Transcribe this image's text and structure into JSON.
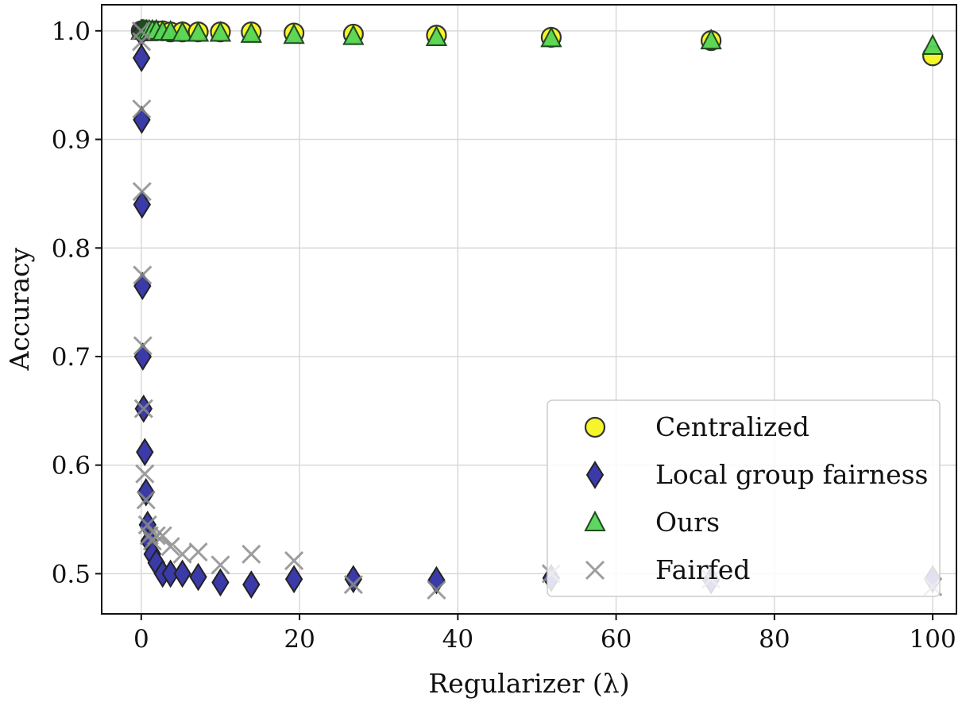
{
  "chart_data": {
    "type": "scatter",
    "title": "",
    "xlabel": "Regularizer (λ)",
    "ylabel": "Accuracy",
    "xlim": [
      -5,
      103
    ],
    "ylim": [
      0.463,
      1.024
    ],
    "xticks": [
      0,
      20,
      40,
      60,
      80,
      100
    ],
    "yticks": [
      0.5,
      0.6,
      0.7,
      0.8,
      0.9,
      1.0
    ],
    "grid": true,
    "legend_position": "bottom-right",
    "series": [
      {
        "name": "Centralized",
        "marker": "circle",
        "color": "#f5f52a",
        "x": [
          0,
          0.1,
          0.2,
          0.3,
          0.5,
          0.7,
          1.0,
          1.4,
          1.9,
          2.7,
          3.7,
          5.2,
          7.2,
          10,
          13.9,
          19.3,
          26.8,
          37.3,
          51.8,
          72,
          100
        ],
        "y": [
          1.0,
          1.0,
          1.0,
          1.0,
          1.0,
          1.0,
          1.0,
          1.0,
          1.0,
          1.0,
          0.999,
          0.999,
          0.999,
          0.999,
          0.999,
          0.998,
          0.997,
          0.996,
          0.994,
          0.991,
          0.977
        ]
      },
      {
        "name": "Local group fairness",
        "marker": "diamond",
        "color": "#3a3aa8",
        "x": [
          0,
          0.03,
          0.06,
          0.1,
          0.15,
          0.2,
          0.3,
          0.45,
          0.6,
          0.8,
          1.0,
          1.4,
          1.9,
          2.7,
          3.7,
          5.2,
          7.2,
          10,
          13.9,
          19.3,
          26.8,
          37.3,
          51.8,
          72,
          100
        ],
        "y": [
          0.998,
          0.975,
          0.918,
          0.84,
          0.765,
          0.7,
          0.652,
          0.612,
          0.575,
          0.545,
          0.53,
          0.518,
          0.51,
          0.5,
          0.5,
          0.5,
          0.497,
          0.492,
          0.49,
          0.495,
          0.495,
          0.494,
          0.496,
          0.494,
          0.495
        ]
      },
      {
        "name": "Ours",
        "marker": "triangle",
        "color": "#56d456",
        "x": [
          0,
          0.1,
          0.2,
          0.3,
          0.5,
          0.7,
          1.0,
          1.4,
          1.9,
          2.7,
          3.7,
          5.2,
          7.2,
          10,
          13.9,
          19.3,
          26.8,
          37.3,
          51.8,
          72,
          100
        ],
        "y": [
          1.0,
          1.0,
          1.0,
          1.0,
          1.0,
          1.0,
          1.0,
          1.0,
          1.0,
          0.999,
          0.999,
          0.998,
          0.998,
          0.998,
          0.997,
          0.996,
          0.995,
          0.994,
          0.993,
          0.991,
          0.986
        ]
      },
      {
        "name": "Fairfed",
        "marker": "x",
        "color": "#8c8c8c",
        "x": [
          0,
          0.03,
          0.06,
          0.1,
          0.15,
          0.2,
          0.3,
          0.45,
          0.6,
          0.8,
          1.0,
          1.4,
          1.9,
          2.7,
          3.7,
          5.2,
          7.2,
          10,
          13.9,
          19.3,
          26.8,
          37.3,
          51.8,
          72,
          100
        ],
        "y": [
          1.0,
          0.99,
          0.928,
          0.852,
          0.775,
          0.71,
          0.652,
          0.592,
          0.568,
          0.545,
          0.535,
          0.53,
          0.535,
          0.535,
          0.525,
          0.518,
          0.52,
          0.508,
          0.518,
          0.512,
          0.49,
          0.485,
          0.5,
          0.495,
          0.488
        ]
      }
    ]
  }
}
